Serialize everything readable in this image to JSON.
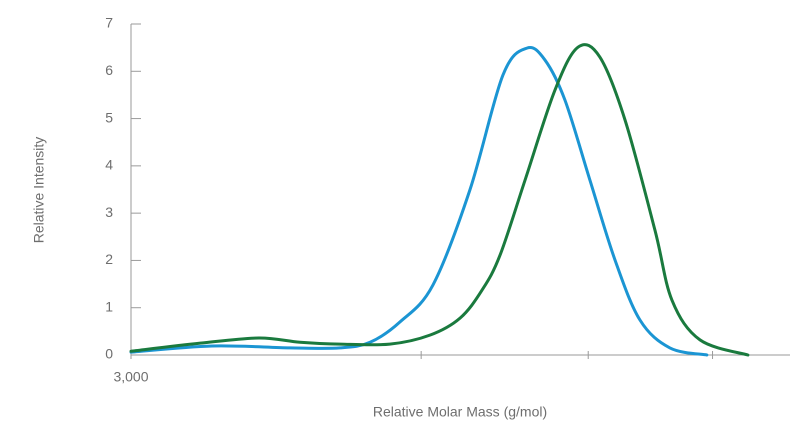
{
  "chart_data": {
    "type": "line",
    "x_label": "Relative Molar Mass (g/mol)",
    "y_label": "Relative Intensity",
    "xscale": "log",
    "xlim": [
      3000,
      46200
    ],
    "xticks": [
      {
        "value": 3000,
        "label": "3,000"
      }
    ],
    "xminorticks": [
      10000,
      20000,
      33500
    ],
    "ylim": [
      0,
      7
    ],
    "yticks": [
      0,
      1,
      2,
      3,
      4,
      5,
      6,
      7
    ],
    "series": [
      {
        "color": "#1b95d3",
        "x": [
          3000,
          4200,
          5800,
          7140,
          8090,
          9160,
          10500,
          12240,
          14040,
          15510,
          16710,
          18160,
          20140,
          22350,
          24790,
          28070,
          32730
        ],
        "values": [
          0.06,
          0.19,
          0.15,
          0.15,
          0.27,
          0.7,
          1.48,
          3.49,
          5.92,
          6.49,
          6.24,
          5.39,
          3.7,
          2.01,
          0.74,
          0.15,
          0
        ]
      },
      {
        "color": "#1a7a3e",
        "x": [
          3000,
          4000,
          5100,
          6050,
          7140,
          8780,
          10370,
          11750,
          12870,
          13870,
          15390,
          17420,
          19170,
          20990,
          23300,
          26380,
          28310,
          31800,
          38800
        ],
        "values": [
          0.08,
          0.25,
          0.36,
          0.27,
          0.23,
          0.23,
          0.42,
          0.78,
          1.37,
          2.11,
          3.7,
          5.6,
          6.51,
          6.3,
          4.97,
          2.64,
          1.16,
          0.32,
          0
        ]
      }
    ]
  }
}
